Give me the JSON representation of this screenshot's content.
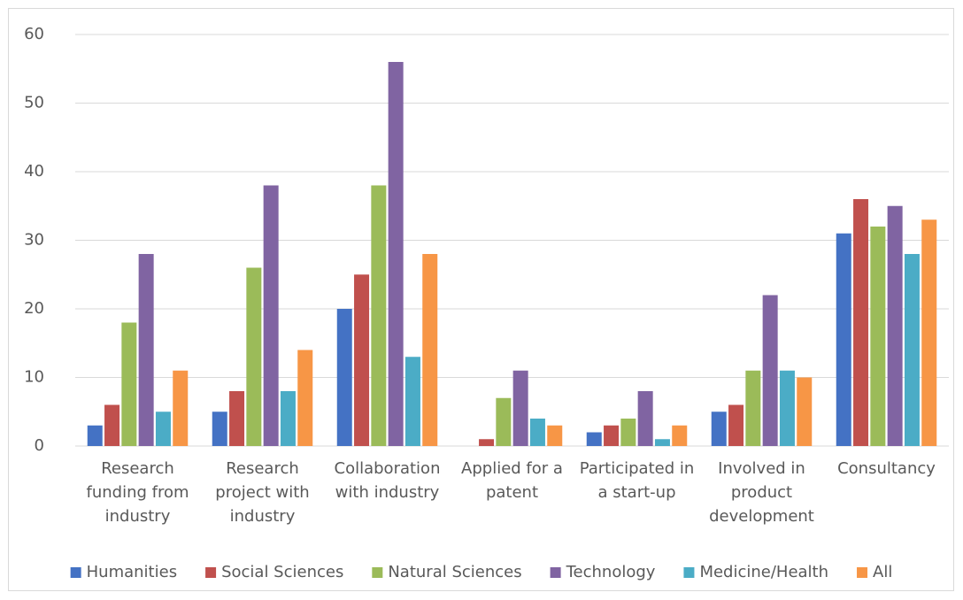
{
  "chart_data": {
    "type": "bar",
    "categories": [
      "Research funding from industry",
      "Research project with industry",
      "Collaboration with industry",
      "Applied for a patent",
      "Participated in a start-up",
      "Involved in product development",
      "Consultancy"
    ],
    "series": [
      {
        "name": "Humanities",
        "color": "#4472c4",
        "values": [
          3,
          5,
          20,
          0,
          2,
          5,
          31
        ]
      },
      {
        "name": "Social Sciences",
        "color": "#c0504d",
        "values": [
          6,
          8,
          25,
          1,
          3,
          6,
          36
        ]
      },
      {
        "name": "Natural Sciences",
        "color": "#9bbb59",
        "values": [
          18,
          26,
          38,
          7,
          4,
          11,
          32
        ]
      },
      {
        "name": "Technology",
        "color": "#8064a2",
        "values": [
          28,
          38,
          56,
          11,
          8,
          22,
          35
        ]
      },
      {
        "name": "Medicine/Health",
        "color": "#4bacc6",
        "values": [
          5,
          8,
          13,
          4,
          1,
          11,
          28
        ]
      },
      {
        "name": "All",
        "color": "#f79646",
        "values": [
          11,
          14,
          28,
          3,
          3,
          10,
          33
        ]
      }
    ],
    "ylim": [
      0,
      60
    ],
    "yticks": [
      0,
      10,
      20,
      30,
      40,
      50,
      60
    ],
    "grid": true,
    "legend": "bottom"
  }
}
